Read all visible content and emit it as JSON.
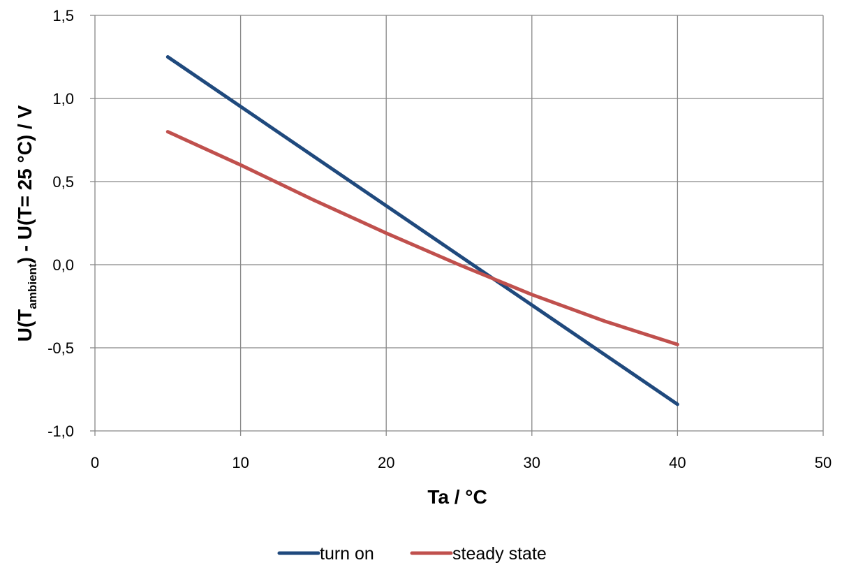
{
  "chart_data": {
    "type": "line",
    "xlabel": "Ta / °C",
    "ylabel": {
      "prefix": "U(T",
      "subscript": "ambient",
      "suffix": ") - U(T= 25 °C) / V"
    },
    "xlim": [
      0,
      50
    ],
    "ylim": [
      -1.0,
      1.5
    ],
    "xticks": [
      {
        "value": 0,
        "label": "0"
      },
      {
        "value": 10,
        "label": "10"
      },
      {
        "value": 20,
        "label": "20"
      },
      {
        "value": 30,
        "label": "30"
      },
      {
        "value": 40,
        "label": "40"
      },
      {
        "value": 50,
        "label": "50"
      }
    ],
    "yticks": [
      {
        "value": -1.0,
        "label": "-1,0"
      },
      {
        "value": -0.5,
        "label": "-0,5"
      },
      {
        "value": 0.0,
        "label": "0,0"
      },
      {
        "value": 0.5,
        "label": "0,5"
      },
      {
        "value": 1.0,
        "label": "1,0"
      },
      {
        "value": 1.5,
        "label": "1,5"
      }
    ],
    "grid": true,
    "legend_position": "bottom",
    "series": [
      {
        "name": "turn on",
        "color": "#1f497d",
        "points": [
          [
            5,
            1.25
          ],
          [
            40,
            -0.84
          ]
        ]
      },
      {
        "name": "steady state",
        "color": "#c0504d",
        "points": [
          [
            5,
            0.8
          ],
          [
            10,
            0.6
          ],
          [
            15,
            0.39
          ],
          [
            20,
            0.19
          ],
          [
            25,
            0.0
          ],
          [
            30,
            -0.18
          ],
          [
            35,
            -0.34
          ],
          [
            40,
            -0.48
          ]
        ]
      }
    ]
  }
}
